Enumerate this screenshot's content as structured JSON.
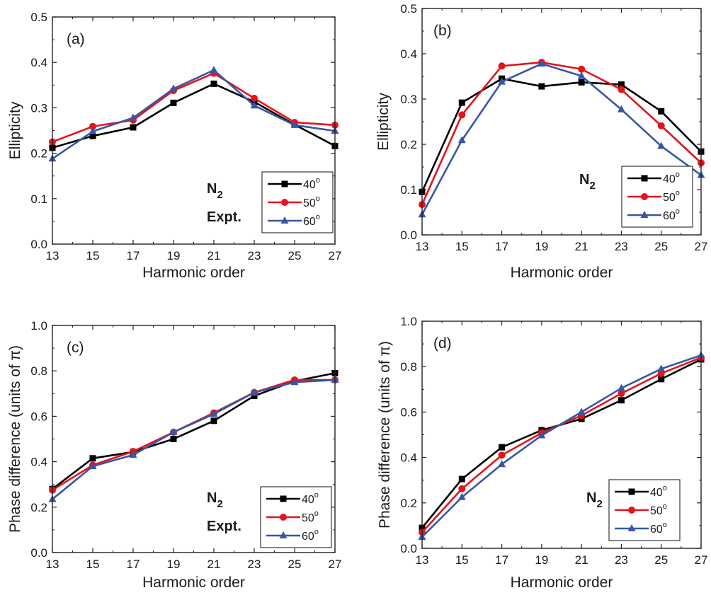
{
  "figure": {
    "marker_shapes": [
      "square",
      "circle",
      "triangle"
    ],
    "series_colors": [
      "#000000",
      "#e3141c",
      "#3956a4"
    ],
    "legend_degree_symbol": "o"
  },
  "chart_data": [
    {
      "type": "line",
      "panel_label": "(a)",
      "annotation": "N",
      "annotation_sub": "2",
      "annotation_2": "Expt.",
      "xlabel": "Harmonic order",
      "ylabel": "Ellipticity",
      "xlim": [
        13,
        27
      ],
      "ylim": [
        0.0,
        0.5
      ],
      "xticks": [
        "13",
        "15",
        "17",
        "19",
        "21",
        "23",
        "25",
        "27"
      ],
      "yticks": [
        "0.0",
        "0.1",
        "0.2",
        "0.3",
        "0.4",
        "0.5"
      ],
      "legend_position": "bottom-right",
      "grid": false,
      "x": [
        13,
        15,
        17,
        19,
        21,
        23,
        25,
        27
      ],
      "series": [
        {
          "name": "40",
          "values": [
            0.212,
            0.238,
            0.257,
            0.311,
            0.353,
            0.313,
            0.263,
            0.216
          ]
        },
        {
          "name": "50",
          "values": [
            0.225,
            0.259,
            0.273,
            0.338,
            0.376,
            0.321,
            0.268,
            0.262
          ]
        },
        {
          "name": "60",
          "values": [
            0.188,
            0.248,
            0.278,
            0.342,
            0.383,
            0.305,
            0.262,
            0.249
          ]
        }
      ]
    },
    {
      "type": "line",
      "panel_label": "(b)",
      "annotation": "N",
      "annotation_sub": "2",
      "annotation_2": "",
      "xlabel": "Harmonic order",
      "ylabel": "Ellipticity",
      "xlim": [
        13,
        27
      ],
      "ylim": [
        0.0,
        0.5
      ],
      "xticks": [
        "13",
        "15",
        "17",
        "19",
        "21",
        "23",
        "25",
        "27"
      ],
      "yticks": [
        "0.0",
        "0.1",
        "0.2",
        "0.3",
        "0.4",
        "0.5"
      ],
      "legend_position": "bottom-right",
      "grid": false,
      "x": [
        13,
        15,
        17,
        19,
        21,
        23,
        25,
        27
      ],
      "series": [
        {
          "name": "40",
          "values": [
            0.095,
            0.292,
            0.345,
            0.328,
            0.337,
            0.332,
            0.273,
            0.184
          ]
        },
        {
          "name": "50",
          "values": [
            0.067,
            0.265,
            0.373,
            0.381,
            0.366,
            0.321,
            0.241,
            0.159
          ]
        },
        {
          "name": "60",
          "values": [
            0.045,
            0.209,
            0.338,
            0.378,
            0.351,
            0.277,
            0.196,
            0.132
          ]
        }
      ]
    },
    {
      "type": "line",
      "panel_label": "(c)",
      "annotation": "N",
      "annotation_sub": "2",
      "annotation_2": "Expt.",
      "xlabel": "Harmonic order",
      "ylabel": "Phase difference (units of π)",
      "xlim": [
        13,
        27
      ],
      "ylim": [
        0.0,
        1.0
      ],
      "xticks": [
        "13",
        "15",
        "17",
        "19",
        "21",
        "23",
        "25",
        "27"
      ],
      "yticks": [
        "0.0",
        "0.2",
        "0.4",
        "0.6",
        "0.8",
        "1.0"
      ],
      "legend_position": "bottom-right",
      "grid": false,
      "x": [
        13,
        15,
        17,
        19,
        21,
        23,
        25,
        27
      ],
      "series": [
        {
          "name": "40",
          "values": [
            0.28,
            0.415,
            0.443,
            0.5,
            0.58,
            0.69,
            0.755,
            0.79
          ]
        },
        {
          "name": "50",
          "values": [
            0.275,
            0.385,
            0.445,
            0.53,
            0.615,
            0.705,
            0.76,
            0.76
          ]
        },
        {
          "name": "60",
          "values": [
            0.235,
            0.38,
            0.43,
            0.53,
            0.61,
            0.705,
            0.75,
            0.76
          ]
        }
      ]
    },
    {
      "type": "line",
      "panel_label": "(d)",
      "annotation": "N",
      "annotation_sub": "2",
      "annotation_2": "",
      "xlabel": "Harmonic order",
      "ylabel": "Phase difference (units of π)",
      "xlim": [
        13,
        27
      ],
      "ylim": [
        0.0,
        1.0
      ],
      "xticks": [
        "13",
        "15",
        "17",
        "19",
        "21",
        "23",
        "25",
        "27"
      ],
      "yticks": [
        "0.0",
        "0.2",
        "0.4",
        "0.6",
        "0.8",
        "1.0"
      ],
      "legend_position": "center-right",
      "grid": false,
      "x": [
        13,
        15,
        17,
        19,
        21,
        23,
        25,
        27
      ],
      "series": [
        {
          "name": "40",
          "values": [
            0.09,
            0.305,
            0.445,
            0.52,
            0.57,
            0.652,
            0.745,
            0.832
          ]
        },
        {
          "name": "50",
          "values": [
            0.07,
            0.262,
            0.41,
            0.508,
            0.585,
            0.682,
            0.77,
            0.84
          ]
        },
        {
          "name": "60",
          "values": [
            0.05,
            0.225,
            0.37,
            0.497,
            0.6,
            0.705,
            0.79,
            0.85
          ]
        }
      ]
    }
  ]
}
